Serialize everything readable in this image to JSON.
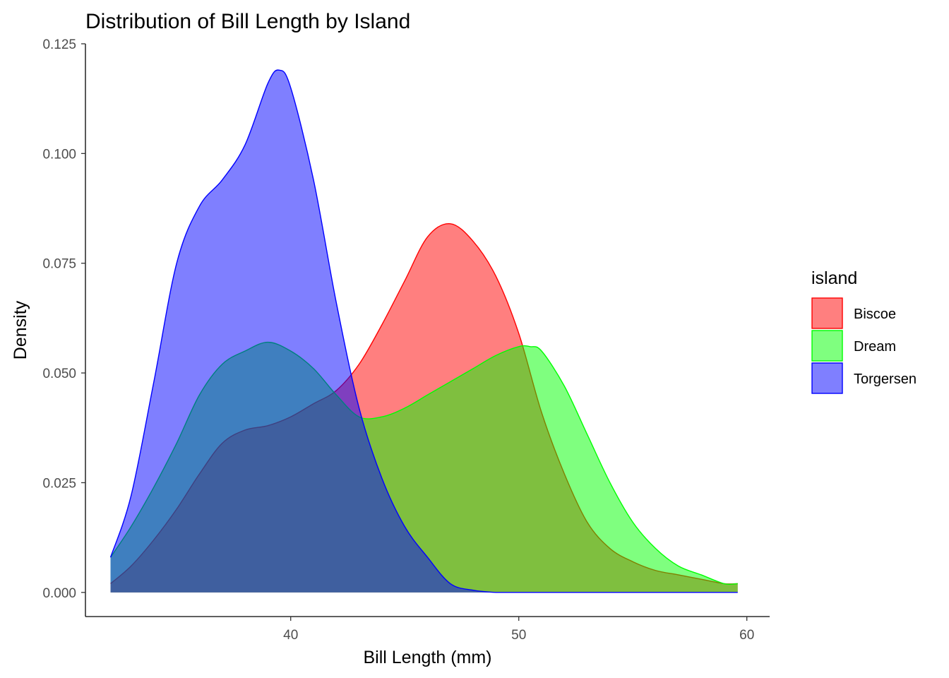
{
  "chart_data": {
    "type": "area",
    "title": "Distribution of Bill Length by Island",
    "xlabel": "Bill Length (mm)",
    "ylabel": "Density",
    "xlim": [
      31.0,
      61.0
    ],
    "ylim": [
      -0.0055,
      0.125
    ],
    "x_ticks": [
      40,
      50,
      60
    ],
    "x_tick_labels": [
      "40",
      "50",
      "60"
    ],
    "y_ticks": [
      0.0,
      0.025,
      0.05,
      0.075,
      0.1,
      0.125
    ],
    "y_tick_labels": [
      "0.000",
      "0.025",
      "0.050",
      "0.075",
      "0.100",
      "0.125"
    ],
    "grid": false,
    "legend": {
      "title": "island",
      "placement": "right",
      "items": [
        "Biscoe",
        "Dream",
        "Torgersen"
      ]
    },
    "fill_opacity": 0.5,
    "series": [
      {
        "name": "Biscoe",
        "fill": "#ff0000",
        "stroke": "#ff0000",
        "x": [
          32.1,
          33,
          34,
          35,
          36,
          37,
          38,
          39,
          40,
          41,
          42,
          43,
          44,
          45,
          46,
          47,
          48,
          49,
          50,
          51,
          52,
          53,
          54,
          55,
          56,
          57,
          58,
          59,
          59.6
        ],
        "y": [
          0.002,
          0.006,
          0.012,
          0.019,
          0.027,
          0.034,
          0.037,
          0.038,
          0.04,
          0.043,
          0.046,
          0.052,
          0.061,
          0.071,
          0.081,
          0.084,
          0.08,
          0.072,
          0.059,
          0.041,
          0.027,
          0.016,
          0.01,
          0.007,
          0.005,
          0.004,
          0.003,
          0.002,
          0.002
        ]
      },
      {
        "name": "Dream",
        "fill": "#00ff00",
        "stroke": "#00ff00",
        "x": [
          32.1,
          33,
          34,
          35,
          36,
          37,
          38,
          39,
          40,
          41,
          42,
          43,
          44,
          45,
          46,
          47,
          48,
          49,
          50,
          50.5,
          51,
          52,
          53,
          54,
          55,
          56,
          57,
          58,
          59,
          59.6
        ],
        "y": [
          0.008,
          0.015,
          0.024,
          0.034,
          0.045,
          0.052,
          0.055,
          0.057,
          0.055,
          0.051,
          0.045,
          0.04,
          0.04,
          0.042,
          0.045,
          0.048,
          0.051,
          0.054,
          0.056,
          0.056,
          0.055,
          0.047,
          0.036,
          0.025,
          0.016,
          0.01,
          0.006,
          0.004,
          0.002,
          0.002
        ]
      },
      {
        "name": "Torgersen",
        "fill": "#0000ff",
        "stroke": "#0000ff",
        "x": [
          32.1,
          33,
          34,
          35,
          36,
          37,
          38,
          39,
          39.5,
          40,
          41,
          42,
          43,
          44,
          45,
          46,
          47,
          48,
          49,
          50,
          51,
          52,
          53,
          54,
          55,
          56,
          57,
          58,
          59,
          59.6
        ],
        "y": [
          0.008,
          0.022,
          0.048,
          0.075,
          0.088,
          0.094,
          0.102,
          0.116,
          0.119,
          0.115,
          0.094,
          0.066,
          0.042,
          0.026,
          0.015,
          0.008,
          0.002,
          0.0005,
          0.0,
          0.0,
          0.0,
          0.0,
          0.0,
          0.0,
          0.0,
          0.0,
          0.0,
          0.0,
          0.0,
          0.0
        ]
      }
    ]
  }
}
